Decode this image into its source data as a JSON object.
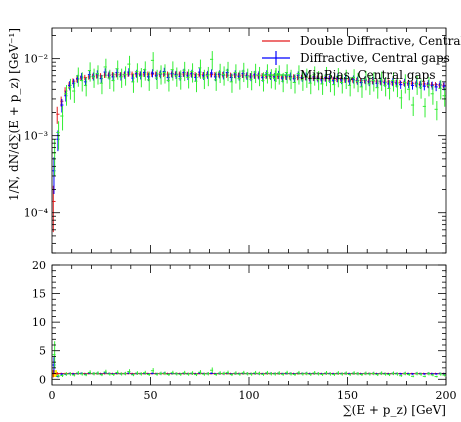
{
  "chart_data": {
    "type": "scatter",
    "title": "",
    "main": {
      "ylabel": "1/N, dN/d∑(E + p_z) [GeV⁻¹]",
      "yscale": "log",
      "ylim": [
        3e-05,
        0.025
      ],
      "ytick_labels": [
        "10⁻⁴",
        "10⁻³",
        "10⁻²"
      ],
      "ytick_values": [
        0.0001,
        0.001,
        0.01
      ]
    },
    "ratio": {
      "ylim": [
        -1,
        20
      ],
      "ytick_values": [
        0,
        5,
        10,
        15,
        20
      ],
      "ytick_labels": [
        "0",
        "5",
        "10",
        "15",
        "20"
      ]
    },
    "x": {
      "label": "∑(E + p_z) [GeV]",
      "lim": [
        0,
        200
      ],
      "tick_values": [
        0,
        50,
        100,
        150,
        200
      ],
      "tick_labels": [
        "0",
        "50",
        "100",
        "150",
        "200"
      ]
    },
    "legend_position": "top-right",
    "series": [
      {
        "name": "Double Diffractive, Central gaps",
        "color": "#e31a1c",
        "bin_width": 2,
        "y": [
          0.00014,
          0.0019,
          0.0028,
          0.0038,
          0.0045,
          0.0051,
          0.0054,
          0.0056,
          0.0057,
          0.0058,
          0.0059,
          0.006,
          0.006,
          0.0061,
          0.0061,
          0.0062,
          0.0062,
          0.0062,
          0.0062,
          0.0063,
          0.0063,
          0.0063,
          0.0063,
          0.0063,
          0.0063,
          0.0063,
          0.0063,
          0.0063,
          0.0063,
          0.0063,
          0.0063,
          0.0063,
          0.0063,
          0.0063,
          0.0063,
          0.0063,
          0.0062,
          0.0062,
          0.0062,
          0.0062,
          0.0062,
          0.0062,
          0.0062,
          0.0062,
          0.0061,
          0.0061,
          0.0061,
          0.0061,
          0.0061,
          0.006,
          0.006,
          0.006,
          0.006,
          0.006,
          0.0059,
          0.0059,
          0.0059,
          0.0059,
          0.0058,
          0.0058,
          0.0058,
          0.0058,
          0.0057,
          0.0057,
          0.0057,
          0.0056,
          0.0056,
          0.0056,
          0.0055,
          0.0055,
          0.0055,
          0.0054,
          0.0054,
          0.0054,
          0.0053,
          0.0053,
          0.0053,
          0.0052,
          0.0052,
          0.0052,
          0.0051,
          0.0051,
          0.0051,
          0.005,
          0.005,
          0.005,
          0.0049,
          0.0049,
          0.0049,
          0.0048,
          0.0048,
          0.0048,
          0.0047,
          0.0047,
          0.0047,
          0.0046,
          0.0046,
          0.0046,
          0.0045,
          0.0045
        ],
        "rel_err": [
          0.6,
          0.25,
          0.15,
          0.12,
          0.1,
          0.09,
          0.09,
          0.08,
          0.08,
          0.08,
          0.08,
          0.08,
          0.08,
          0.08,
          0.08,
          0.08,
          0.08,
          0.08,
          0.08,
          0.08,
          0.08,
          0.08,
          0.08,
          0.08,
          0.08,
          0.08,
          0.08,
          0.08,
          0.08,
          0.08,
          0.08,
          0.08,
          0.08,
          0.08,
          0.08,
          0.08,
          0.08,
          0.08,
          0.08,
          0.08,
          0.08,
          0.08,
          0.08,
          0.08,
          0.08,
          0.08,
          0.08,
          0.08,
          0.08,
          0.08,
          0.08,
          0.08,
          0.08,
          0.08,
          0.08,
          0.08,
          0.08,
          0.08,
          0.08,
          0.08,
          0.08,
          0.08,
          0.08,
          0.08,
          0.08,
          0.08,
          0.08,
          0.08,
          0.08,
          0.08,
          0.08,
          0.08,
          0.08,
          0.08,
          0.08,
          0.08,
          0.08,
          0.08,
          0.08,
          0.08,
          0.08,
          0.08,
          0.08,
          0.08,
          0.08,
          0.08,
          0.08,
          0.08,
          0.08,
          0.08,
          0.08,
          0.08,
          0.08,
          0.08,
          0.08,
          0.08,
          0.08,
          0.08,
          0.08,
          0.08
        ],
        "ratio": [
          1,
          1,
          1,
          1,
          1,
          1,
          1,
          1,
          1,
          1,
          1,
          1,
          1,
          1,
          1,
          1,
          1,
          1,
          1,
          1,
          1,
          1,
          1,
          1,
          1,
          1,
          1,
          1,
          1,
          1,
          1,
          1,
          1,
          1,
          1,
          1,
          1,
          1,
          1,
          1,
          1,
          1,
          1,
          1,
          1,
          1,
          1,
          1,
          1,
          1,
          1,
          1,
          1,
          1,
          1,
          1,
          1,
          1,
          1,
          1,
          1,
          1,
          1,
          1,
          1,
          1,
          1,
          1,
          1,
          1,
          1,
          1,
          1,
          1,
          1,
          1,
          1,
          1,
          1,
          1,
          1,
          1,
          1,
          1,
          1,
          1,
          1,
          1,
          1,
          1,
          1,
          1,
          1,
          1,
          1,
          1,
          1,
          1,
          1,
          1
        ]
      },
      {
        "name": "Diffractive, Central gaps",
        "color": "#0000ff",
        "bin_width": 2,
        "y": [
          0.00035,
          0.0009,
          0.0025,
          0.0033,
          0.0045,
          0.0048,
          0.0055,
          0.0058,
          0.005,
          0.0062,
          0.0059,
          0.0063,
          0.0055,
          0.0067,
          0.0061,
          0.0058,
          0.0066,
          0.0059,
          0.0062,
          0.0067,
          0.0056,
          0.0064,
          0.0061,
          0.0066,
          0.0058,
          0.0065,
          0.006,
          0.0063,
          0.0068,
          0.0057,
          0.0064,
          0.0062,
          0.0059,
          0.0066,
          0.006,
          0.0064,
          0.0057,
          0.0067,
          0.006,
          0.0062,
          0.0065,
          0.0058,
          0.0063,
          0.0061,
          0.0066,
          0.0057,
          0.0063,
          0.0059,
          0.0064,
          0.006,
          0.0058,
          0.0062,
          0.0061,
          0.0057,
          0.0063,
          0.006,
          0.0058,
          0.0062,
          0.0056,
          0.006,
          0.0059,
          0.0055,
          0.0061,
          0.0057,
          0.0059,
          0.0055,
          0.0058,
          0.0056,
          0.0053,
          0.0057,
          0.0055,
          0.0052,
          0.0056,
          0.0053,
          0.0055,
          0.0051,
          0.0054,
          0.0052,
          0.0049,
          0.0053,
          0.005,
          0.0052,
          0.0048,
          0.0051,
          0.0049,
          0.0047,
          0.005,
          0.0048,
          0.0046,
          0.0049,
          0.0047,
          0.0045,
          0.0048,
          0.0046,
          0.0044,
          0.0047,
          0.0045,
          0.0043,
          0.0046,
          0.0044
        ],
        "rel_err": [
          0.5,
          0.3,
          0.2,
          0.16,
          0.14,
          0.13,
          0.12,
          0.12,
          0.12,
          0.12,
          0.12,
          0.12,
          0.12,
          0.12,
          0.12,
          0.12,
          0.12,
          0.12,
          0.12,
          0.12,
          0.12,
          0.12,
          0.12,
          0.12,
          0.12,
          0.12,
          0.12,
          0.12,
          0.12,
          0.12,
          0.12,
          0.12,
          0.12,
          0.12,
          0.12,
          0.12,
          0.12,
          0.12,
          0.12,
          0.12,
          0.12,
          0.12,
          0.12,
          0.12,
          0.12,
          0.12,
          0.12,
          0.12,
          0.12,
          0.12,
          0.12,
          0.12,
          0.12,
          0.12,
          0.12,
          0.12,
          0.12,
          0.12,
          0.12,
          0.12,
          0.12,
          0.12,
          0.12,
          0.12,
          0.12,
          0.12,
          0.12,
          0.12,
          0.12,
          0.12,
          0.12,
          0.12,
          0.12,
          0.12,
          0.12,
          0.12,
          0.12,
          0.12,
          0.12,
          0.12,
          0.12,
          0.12,
          0.12,
          0.12,
          0.12,
          0.12,
          0.12,
          0.12,
          0.12,
          0.12,
          0.12,
          0.12,
          0.12,
          0.12,
          0.12,
          0.12,
          0.12,
          0.12,
          0.12,
          0.12
        ],
        "ratio": [
          2.5,
          0.5,
          0.9,
          0.87,
          1.0,
          0.94,
          1.02,
          1.04,
          0.88,
          1.07,
          1.0,
          1.05,
          0.92,
          1.1,
          1.0,
          0.94,
          1.06,
          0.95,
          1.0,
          1.06,
          0.89,
          1.02,
          0.97,
          1.05,
          0.92,
          1.03,
          0.95,
          1.0,
          1.08,
          0.9,
          1.02,
          0.98,
          0.94,
          1.05,
          0.95,
          1.02,
          0.92,
          1.08,
          0.97,
          1.0,
          1.05,
          0.94,
          1.02,
          1.0,
          1.08,
          0.93,
          1.03,
          0.97,
          1.05,
          1.0,
          0.97,
          1.03,
          1.0,
          0.95,
          1.07,
          1.02,
          0.98,
          1.05,
          0.97,
          1.03,
          1.02,
          0.95,
          1.07,
          1.0,
          1.04,
          0.98,
          1.04,
          1.0,
          0.96,
          1.04,
          1.0,
          0.96,
          1.04,
          0.98,
          1.04,
          0.98,
          1.04,
          1.0,
          0.94,
          1.02,
          0.98,
          1.02,
          0.96,
          1.02,
          0.98,
          0.94,
          1.02,
          1.0,
          0.96,
          1.02,
          0.98,
          0.94,
          1.02,
          0.98,
          0.94,
          1.02,
          0.98,
          0.94,
          1.02,
          0.98
        ]
      },
      {
        "name": "MinBias, Central gaps",
        "color": "#33ee33",
        "bin_width": 2,
        "y": [
          0.0006,
          0.0011,
          0.0018,
          0.0035,
          0.0042,
          0.0038,
          0.006,
          0.0052,
          0.0045,
          0.007,
          0.0058,
          0.0064,
          0.0048,
          0.0078,
          0.0056,
          0.0052,
          0.0074,
          0.0058,
          0.0062,
          0.0085,
          0.005,
          0.0068,
          0.0059,
          0.0072,
          0.0053,
          0.0095,
          0.0056,
          0.0064,
          0.0066,
          0.0052,
          0.0072,
          0.006,
          0.0055,
          0.0071,
          0.0057,
          0.0068,
          0.0051,
          0.0076,
          0.0056,
          0.0061,
          0.0098,
          0.0053,
          0.0067,
          0.0062,
          0.0071,
          0.005,
          0.0066,
          0.0055,
          0.0069,
          0.0058,
          0.0054,
          0.0067,
          0.0061,
          0.0052,
          0.0066,
          0.0057,
          0.0055,
          0.0064,
          0.0051,
          0.0066,
          0.0056,
          0.0049,
          0.0064,
          0.0053,
          0.0058,
          0.0048,
          0.0062,
          0.0054,
          0.0047,
          0.0061,
          0.0051,
          0.0046,
          0.0059,
          0.0049,
          0.0056,
          0.0045,
          0.0057,
          0.0051,
          0.0043,
          0.0054,
          0.0047,
          0.0052,
          0.0042,
          0.0053,
          0.0045,
          0.0041,
          0.0052,
          0.0044,
          0.0031,
          0.0049,
          0.004,
          0.0025,
          0.0047,
          0.0042,
          0.0024,
          0.0045,
          0.0035,
          0.0022,
          0.0041,
          0.0033
        ],
        "rel_err": [
          0.5,
          0.4,
          0.35,
          0.3,
          0.3,
          0.3,
          0.28,
          0.28,
          0.28,
          0.28,
          0.28,
          0.28,
          0.28,
          0.28,
          0.28,
          0.28,
          0.28,
          0.28,
          0.28,
          0.28,
          0.28,
          0.28,
          0.28,
          0.28,
          0.28,
          0.28,
          0.28,
          0.28,
          0.28,
          0.28,
          0.28,
          0.28,
          0.28,
          0.28,
          0.28,
          0.28,
          0.28,
          0.28,
          0.28,
          0.28,
          0.28,
          0.28,
          0.28,
          0.28,
          0.28,
          0.28,
          0.28,
          0.28,
          0.28,
          0.28,
          0.28,
          0.28,
          0.28,
          0.28,
          0.28,
          0.28,
          0.28,
          0.28,
          0.28,
          0.28,
          0.28,
          0.28,
          0.28,
          0.28,
          0.28,
          0.28,
          0.28,
          0.28,
          0.28,
          0.28,
          0.28,
          0.28,
          0.28,
          0.28,
          0.28,
          0.28,
          0.28,
          0.28,
          0.28,
          0.28,
          0.28,
          0.28,
          0.28,
          0.28,
          0.28,
          0.28,
          0.28,
          0.28,
          0.28,
          0.28,
          0.28,
          0.28,
          0.28,
          0.28,
          0.28,
          0.28,
          0.28,
          0.28,
          0.28,
          0.28
        ],
        "ratio": [
          4.3,
          0.6,
          0.65,
          0.92,
          0.93,
          0.75,
          1.11,
          0.93,
          0.79,
          1.2,
          0.98,
          1.07,
          0.8,
          1.28,
          0.92,
          0.84,
          1.19,
          0.94,
          1.0,
          1.35,
          0.79,
          1.08,
          0.94,
          1.14,
          0.84,
          1.5,
          0.89,
          1.02,
          1.05,
          0.83,
          1.14,
          0.95,
          0.87,
          1.13,
          0.9,
          1.08,
          0.82,
          1.23,
          0.9,
          0.98,
          1.58,
          0.85,
          1.08,
          1.02,
          1.16,
          0.82,
          1.08,
          0.9,
          1.13,
          0.97,
          0.9,
          1.12,
          1.02,
          0.87,
          1.12,
          0.97,
          0.93,
          1.08,
          0.88,
          1.14,
          0.95,
          0.84,
          1.12,
          0.93,
          1.02,
          0.86,
          1.11,
          0.96,
          0.85,
          1.11,
          0.93,
          0.85,
          1.09,
          0.92,
          1.06,
          0.85,
          1.08,
          0.98,
          0.83,
          1.04,
          0.92,
          1.02,
          0.82,
          1.06,
          0.9,
          0.82,
          1.04,
          0.92,
          0.63,
          1.02,
          0.83,
          0.52,
          1.0,
          0.89,
          0.51,
          0.98,
          0.76,
          0.48,
          0.91,
          0.73
        ]
      }
    ]
  }
}
